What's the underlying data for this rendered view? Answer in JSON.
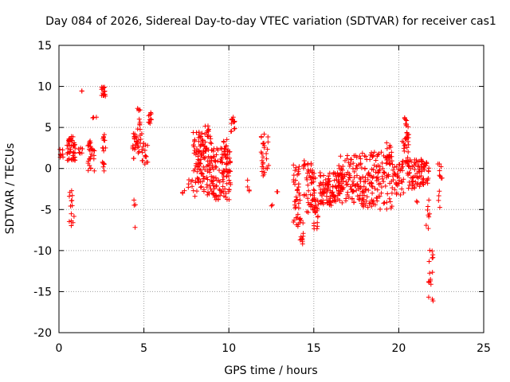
{
  "chart_data": {
    "type": "scatter",
    "title": "Day 084 of 2026, Sidereal Day-to-day VTEC variation (SDTVAR) for receiver cas1",
    "xlabel": "GPS time / hours",
    "ylabel": "SDTVAR / TECUs",
    "xlim": [
      0,
      25
    ],
    "ylim": [
      -20,
      15
    ],
    "xticks": [
      0,
      5,
      10,
      15,
      20,
      25
    ],
    "yticks": [
      -20,
      -15,
      -10,
      -5,
      0,
      5,
      10,
      15
    ],
    "grid": true,
    "legend": "none",
    "marker": "plus",
    "marker_color": "#ff0000",
    "grid_color": "#a0a0a0",
    "series": [
      {
        "name": "SDTVAR cas1",
        "clusters": [
          {
            "x_range": [
              0.05,
              0.25
            ],
            "y_min": 1.3,
            "y_max": 2.4,
            "n": 8
          },
          {
            "x_range": [
              0.45,
              0.95
            ],
            "y_min": 1.0,
            "y_max": 3.9,
            "n": 45
          },
          {
            "x_range": [
              0.6,
              0.9
            ],
            "y_min": -7.3,
            "y_max": -2.5,
            "n": 14
          },
          {
            "x_range": [
              1.15,
              1.4
            ],
            "y_min": 1.5,
            "y_max": 2.6,
            "n": 6
          },
          {
            "x_range": [
              1.3,
              1.35
            ],
            "y_min": 9.2,
            "y_max": 10.1,
            "n": 2
          },
          {
            "x_range": [
              1.7,
              2.1
            ],
            "y_min": -0.3,
            "y_max": 3.5,
            "n": 28
          },
          {
            "x_range": [
              1.8,
              2.3
            ],
            "y_min": 5.9,
            "y_max": 6.4,
            "n": 3
          },
          {
            "x_range": [
              2.5,
              2.75
            ],
            "y_min": 8.8,
            "y_max": 10.1,
            "n": 18
          },
          {
            "x_range": [
              2.55,
              2.75
            ],
            "y_min": -0.4,
            "y_max": 4.8,
            "n": 16
          },
          {
            "x_range": [
              4.3,
              5.0
            ],
            "y_min": 0.8,
            "y_max": 4.4,
            "n": 35
          },
          {
            "x_range": [
              4.4,
              4.55
            ],
            "y_min": -7.7,
            "y_max": -2.0,
            "n": 4
          },
          {
            "x_range": [
              4.55,
              4.85
            ],
            "y_min": 4.6,
            "y_max": 7.5,
            "n": 10
          },
          {
            "x_range": [
              5.05,
              5.25
            ],
            "y_min": 0.0,
            "y_max": 3.1,
            "n": 10
          },
          {
            "x_range": [
              5.25,
              5.45
            ],
            "y_min": 5.3,
            "y_max": 7.0,
            "n": 10
          },
          {
            "x_range": [
              7.2,
              7.4
            ],
            "y_min": -3.1,
            "y_max": -2.3,
            "n": 3
          },
          {
            "x_range": [
              7.6,
              7.9
            ],
            "y_min": -2.5,
            "y_max": -0.3,
            "n": 6
          },
          {
            "x_range": [
              7.9,
              9.0
            ],
            "y_min": -3.5,
            "y_max": 4.6,
            "n": 130
          },
          {
            "x_range": [
              8.5,
              8.9
            ],
            "y_min": 4.0,
            "y_max": 5.3,
            "n": 6
          },
          {
            "x_range": [
              9.0,
              10.1
            ],
            "y_min": -3.8,
            "y_max": 2.5,
            "n": 110
          },
          {
            "x_range": [
              9.6,
              9.9
            ],
            "y_min": 2.0,
            "y_max": 4.4,
            "n": 6
          },
          {
            "x_range": [
              10.1,
              10.35
            ],
            "y_min": 4.5,
            "y_max": 6.3,
            "n": 12
          },
          {
            "x_range": [
              11.0,
              11.2
            ],
            "y_min": -2.8,
            "y_max": -0.7,
            "n": 4
          },
          {
            "x_range": [
              11.9,
              12.35
            ],
            "y_min": -0.9,
            "y_max": 4.3,
            "n": 28
          },
          {
            "x_range": [
              12.5,
              12.6
            ],
            "y_min": -4.6,
            "y_max": -4.4,
            "n": 2
          },
          {
            "x_range": [
              12.8,
              12.9
            ],
            "y_min": -2.9,
            "y_max": -2.7,
            "n": 2
          },
          {
            "x_range": [
              13.8,
              14.2
            ],
            "y_min": -7.5,
            "y_max": 0.5,
            "n": 40
          },
          {
            "x_range": [
              14.15,
              14.4
            ],
            "y_min": -9.2,
            "y_max": -6.0,
            "n": 14
          },
          {
            "x_range": [
              14.4,
              15.1
            ],
            "y_min": -5.5,
            "y_max": 1.0,
            "n": 55
          },
          {
            "x_range": [
              15.0,
              15.3
            ],
            "y_min": -7.8,
            "y_max": -3.5,
            "n": 22
          },
          {
            "x_range": [
              15.3,
              16.5
            ],
            "y_min": -4.5,
            "y_max": -0.5,
            "n": 90
          },
          {
            "x_range": [
              16.4,
              17.8
            ],
            "y_min": -4.2,
            "y_max": 1.6,
            "n": 110
          },
          {
            "x_range": [
              17.8,
              19.6
            ],
            "y_min": -5.0,
            "y_max": 2.0,
            "n": 130
          },
          {
            "x_range": [
              19.2,
              19.6
            ],
            "y_min": 0.8,
            "y_max": 3.3,
            "n": 15
          },
          {
            "x_range": [
              19.6,
              20.3
            ],
            "y_min": -3.3,
            "y_max": 0.8,
            "n": 40
          },
          {
            "x_range": [
              20.2,
              20.6
            ],
            "y_min": 0.5,
            "y_max": 6.2,
            "n": 35
          },
          {
            "x_range": [
              20.5,
              21.5
            ],
            "y_min": -2.5,
            "y_max": 1.2,
            "n": 60
          },
          {
            "x_range": [
              21.0,
              21.15
            ],
            "y_min": -4.2,
            "y_max": -3.8,
            "n": 2
          },
          {
            "x_range": [
              21.3,
              21.8
            ],
            "y_min": -2.0,
            "y_max": 1.0,
            "n": 25
          },
          {
            "x_range": [
              21.6,
              21.85
            ],
            "y_min": -7.8,
            "y_max": -3.8,
            "n": 8
          },
          {
            "x_range": [
              21.75,
              22.05
            ],
            "y_min": -16.2,
            "y_max": -9.5,
            "n": 16
          },
          {
            "x_range": [
              22.3,
              22.55
            ],
            "y_min": -4.8,
            "y_max": 0.6,
            "n": 12
          }
        ]
      }
    ]
  }
}
